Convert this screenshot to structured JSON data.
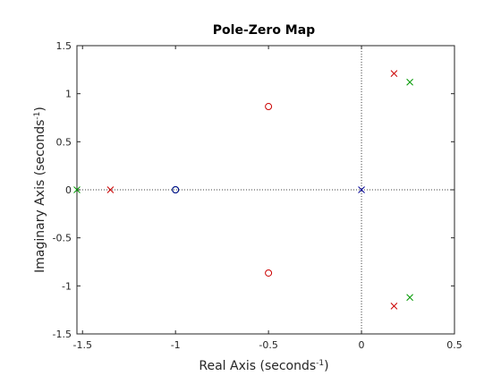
{
  "chart_data": {
    "type": "scatter",
    "title": "Pole-Zero Map",
    "xlabel": {
      "main": "Real Axis (seconds",
      "sup": "-1",
      "close": ")"
    },
    "ylabel": {
      "main": "Imaginary Axis (seconds",
      "sup": "-1",
      "close": ")"
    },
    "xlim": [
      -1.53,
      0.5
    ],
    "ylim": [
      -1.5,
      1.5
    ],
    "xticks": [
      -1.5,
      -1,
      -0.5,
      0,
      0.5
    ],
    "yticks": [
      -1.5,
      -1,
      -0.5,
      0,
      0.5,
      1,
      1.5
    ],
    "xtick_labels": [
      "-1.5",
      "-1",
      "-0.5",
      "0",
      "0.5"
    ],
    "ytick_labels": [
      "-1.5",
      "-1",
      "-0.5",
      "0",
      "0.5",
      "1",
      "1.5"
    ],
    "grid": false,
    "reference_lines": {
      "x": 0,
      "y": 0,
      "style": "dotted"
    },
    "series": [
      {
        "color": "#cc0000",
        "poles": [
          [
            -1.35,
            0
          ],
          [
            0.175,
            1.21
          ],
          [
            0.175,
            -1.21
          ]
        ],
        "zeros": [
          [
            -0.5,
            0.866
          ],
          [
            -0.5,
            -0.866
          ]
        ]
      },
      {
        "color": "#009900",
        "poles": [
          [
            -1.53,
            0
          ],
          [
            0.26,
            1.12
          ],
          [
            0.26,
            -1.12
          ]
        ],
        "zeros": [
          [
            -1,
            0
          ]
        ]
      },
      {
        "color": "#000099",
        "poles": [
          [
            0,
            0
          ]
        ],
        "zeros": [
          [
            -1,
            0
          ]
        ]
      }
    ]
  }
}
